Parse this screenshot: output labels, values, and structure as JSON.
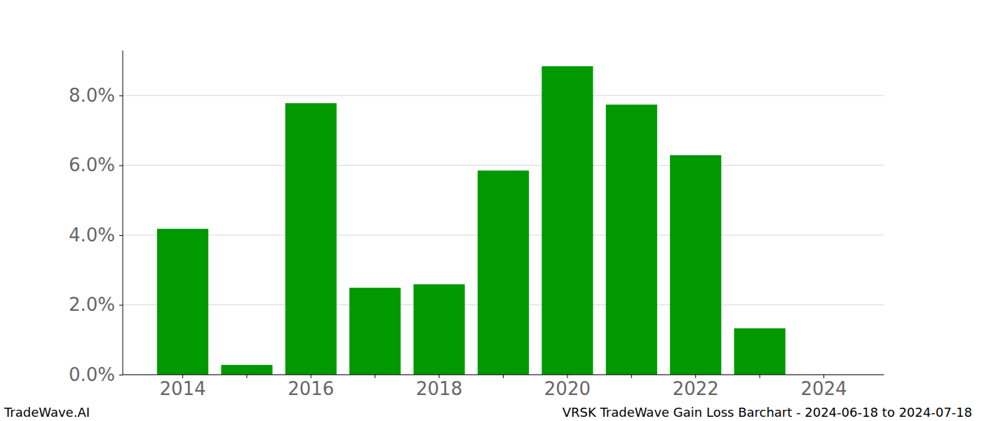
{
  "chart_data": {
    "type": "bar",
    "title": "VRSK TradeWave Gain Loss Barchart - 2024-06-18 to 2024-07-18",
    "annotations": [
      "TradeWave.AI"
    ],
    "categories": [
      "2014",
      null,
      "2016",
      null,
      "2018",
      null,
      "2020",
      null,
      "2022",
      null,
      "2024"
    ],
    "values": [
      4.18,
      0.28,
      7.78,
      2.49,
      2.59,
      5.85,
      8.84,
      7.74,
      6.29,
      1.33,
      0
    ],
    "color": "#009900",
    "ylim": [
      0,
      9.29
    ],
    "yticks": [
      {
        "value": 0,
        "label": "0.0%"
      },
      {
        "value": 2,
        "label": "2.0%"
      },
      {
        "value": 4,
        "label": "4.0%"
      },
      {
        "value": 6,
        "label": "6.0%"
      },
      {
        "value": 8,
        "label": "8.0%"
      }
    ],
    "grid": true
  }
}
